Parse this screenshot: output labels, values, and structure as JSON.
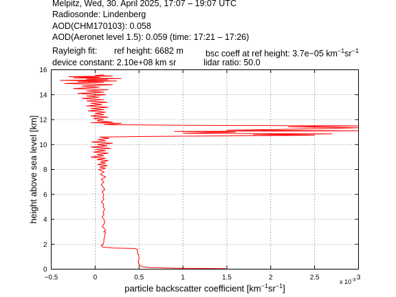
{
  "header": {
    "line1": "Melpitz, Wed, 30. April 2025, 17:07 – 19:07 UTC",
    "line2": "Radiosonde: Lindenberg",
    "line3": "AOD(CHM170103): 0.058",
    "line4": "AOD(Aeronet level 1.5): 0.059   (time: 17:21 – 17:26)",
    "rayleigh_label": "Rayleigh fit:",
    "ref_height": "ref height: 6682 m",
    "bsc_coeff_prefix": "bsc coeff at ref height: 3.7e−05 km",
    "bsc_sup1": "−1",
    "bsc_mid": "sr",
    "bsc_sup2": "−1",
    "device_constant": "device constant: 2.10e+08 km sr",
    "lidar_ratio": "lidar ratio: 50.0"
  },
  "chart_data": {
    "type": "line",
    "title": "",
    "xlabel_prefix": "particle backscatter coefficient [km",
    "xlabel_sup1": "−1",
    "xlabel_mid": "sr",
    "xlabel_sup2": "−1",
    "xlabel_suffix": "]",
    "ylabel": "height above sea level [km]",
    "x_multiplier_label": "x 10",
    "x_multiplier_exp": "-3",
    "xlim": [
      -0.5,
      3.0
    ],
    "ylim": [
      0,
      16
    ],
    "xticks": [
      -0.5,
      0,
      0.5,
      1,
      1.5,
      2,
      2.5,
      3
    ],
    "xtick_labels": [
      "−0.5",
      "0",
      "0.5",
      "1",
      "1.5",
      "2",
      "2.5",
      "3"
    ],
    "yticks": [
      0,
      2,
      4,
      6,
      8,
      10,
      12,
      14,
      16
    ],
    "ytick_labels": [
      "0",
      "2",
      "4",
      "6",
      "8",
      "10",
      "12",
      "14",
      "16"
    ],
    "grid": true,
    "line_color": "#ff0000",
    "series": [
      {
        "name": "",
        "points": [
          [
            1.5,
            0.0
          ],
          [
            1.48,
            0.04
          ],
          [
            0.9,
            0.08
          ],
          [
            0.62,
            0.13
          ],
          [
            0.55,
            0.18
          ],
          [
            0.52,
            0.24
          ],
          [
            0.5,
            0.4
          ],
          [
            0.49,
            0.6
          ],
          [
            0.5,
            0.8
          ],
          [
            0.5,
            1.0
          ],
          [
            0.49,
            1.2
          ],
          [
            0.48,
            1.4
          ],
          [
            0.48,
            1.6
          ],
          [
            0.44,
            1.66
          ],
          [
            0.2,
            1.7
          ],
          [
            0.15,
            1.74
          ],
          [
            0.1,
            1.76
          ],
          [
            0.08,
            1.8
          ],
          [
            0.08,
            1.86
          ],
          [
            0.07,
            1.9
          ],
          [
            0.09,
            2.0
          ],
          [
            0.1,
            2.2
          ],
          [
            0.1,
            2.4
          ],
          [
            0.11,
            2.6
          ],
          [
            0.11,
            2.8
          ],
          [
            0.12,
            2.95
          ],
          [
            0.1,
            3.0
          ],
          [
            0.12,
            3.1
          ],
          [
            0.11,
            3.2
          ],
          [
            0.1,
            3.3
          ],
          [
            0.08,
            3.4
          ],
          [
            0.1,
            3.6
          ],
          [
            0.11,
            3.8
          ],
          [
            0.1,
            4.0
          ],
          [
            0.08,
            4.2
          ],
          [
            0.1,
            4.4
          ],
          [
            0.09,
            4.6
          ],
          [
            0.11,
            4.8
          ],
          [
            0.09,
            5.0
          ],
          [
            0.1,
            5.2
          ],
          [
            0.07,
            5.4
          ],
          [
            0.1,
            5.6
          ],
          [
            0.09,
            5.8
          ],
          [
            0.1,
            6.0
          ],
          [
            0.08,
            6.2
          ],
          [
            0.11,
            6.4
          ],
          [
            0.09,
            6.6
          ],
          [
            0.07,
            6.8
          ],
          [
            0.1,
            7.0
          ],
          [
            0.07,
            7.2
          ],
          [
            0.12,
            7.4
          ],
          [
            0.06,
            7.6
          ],
          [
            0.1,
            7.8
          ],
          [
            0.04,
            8.0
          ],
          [
            0.12,
            8.1
          ],
          [
            0.05,
            8.2
          ],
          [
            0.14,
            8.3
          ],
          [
            0.03,
            8.4
          ],
          [
            0.12,
            8.5
          ],
          [
            0.06,
            8.6
          ],
          [
            0.15,
            8.7
          ],
          [
            0.02,
            8.8
          ],
          [
            0.12,
            8.9
          ],
          [
            -0.05,
            9.0
          ],
          [
            0.1,
            9.1
          ],
          [
            0.02,
            9.2
          ],
          [
            0.15,
            9.3
          ],
          [
            -0.02,
            9.4
          ],
          [
            0.12,
            9.5
          ],
          [
            0.0,
            9.6
          ],
          [
            0.18,
            9.7
          ],
          [
            -0.05,
            9.8
          ],
          [
            0.14,
            9.9
          ],
          [
            0.02,
            10.0
          ],
          [
            0.2,
            10.1
          ],
          [
            -0.04,
            10.2
          ],
          [
            0.12,
            10.3
          ],
          [
            0.03,
            10.4
          ],
          [
            0.16,
            10.5
          ],
          [
            0.05,
            10.6
          ],
          [
            0.5,
            10.65
          ],
          [
            1.5,
            10.7
          ],
          [
            2.5,
            10.75
          ],
          [
            1.8,
            10.8
          ],
          [
            2.7,
            10.85
          ],
          [
            1.0,
            10.9
          ],
          [
            1.6,
            11.0
          ],
          [
            0.9,
            11.05
          ],
          [
            3.0,
            11.1
          ],
          [
            1.5,
            11.15
          ],
          [
            2.0,
            11.2
          ],
          [
            3.0,
            11.35
          ],
          [
            2.2,
            11.42
          ],
          [
            3.0,
            11.5
          ],
          [
            1.0,
            11.55
          ],
          [
            0.1,
            11.6
          ],
          [
            0.3,
            11.7
          ],
          [
            -0.05,
            11.75
          ],
          [
            0.2,
            11.8
          ],
          [
            0.02,
            11.9
          ],
          [
            0.1,
            12.0
          ],
          [
            -0.02,
            12.1
          ],
          [
            0.15,
            12.2
          ],
          [
            -0.05,
            12.3
          ],
          [
            0.1,
            12.4
          ],
          [
            0.0,
            12.5
          ],
          [
            0.12,
            12.6
          ],
          [
            -0.08,
            12.7
          ],
          [
            0.1,
            12.8
          ],
          [
            -0.05,
            12.9
          ],
          [
            0.15,
            13.0
          ],
          [
            -0.1,
            13.1
          ],
          [
            0.08,
            13.2
          ],
          [
            -0.05,
            13.3
          ],
          [
            0.14,
            13.4
          ],
          [
            -0.1,
            13.5
          ],
          [
            0.1,
            13.6
          ],
          [
            -0.15,
            13.7
          ],
          [
            0.05,
            13.8
          ],
          [
            -0.1,
            13.9
          ],
          [
            0.12,
            14.0
          ],
          [
            -0.2,
            14.1
          ],
          [
            0.1,
            14.2
          ],
          [
            -0.1,
            14.3
          ],
          [
            0.15,
            14.4
          ],
          [
            -0.25,
            14.5
          ],
          [
            0.05,
            14.6
          ],
          [
            -0.15,
            14.7
          ],
          [
            0.2,
            14.8
          ],
          [
            -0.35,
            14.9
          ],
          [
            0.1,
            15.0
          ],
          [
            -0.2,
            15.05
          ],
          [
            0.25,
            15.1
          ],
          [
            -0.4,
            15.15
          ],
          [
            0.15,
            15.2
          ],
          [
            -0.1,
            15.25
          ],
          [
            0.3,
            15.3
          ],
          [
            -0.25,
            15.35
          ],
          [
            0.05,
            15.4
          ],
          [
            -0.3,
            15.45
          ],
          [
            0.2,
            15.5
          ],
          [
            0.0,
            15.55
          ],
          [
            0.1,
            15.6
          ]
        ]
      }
    ]
  }
}
